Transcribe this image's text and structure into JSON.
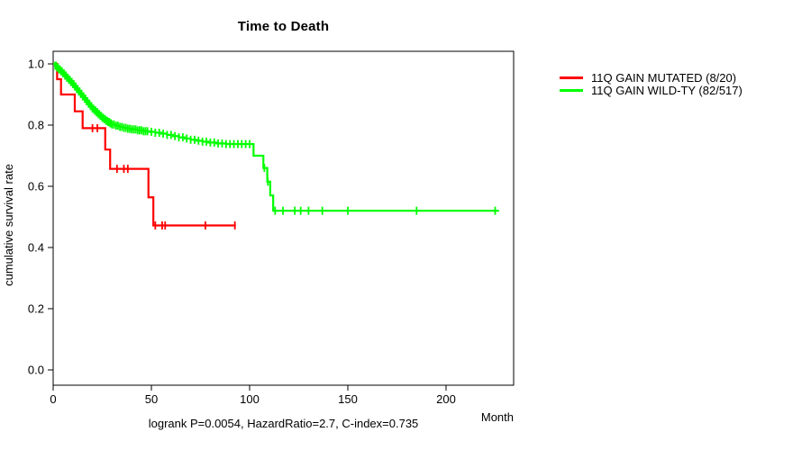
{
  "chart_data": {
    "type": "line",
    "subtype": "kaplan-meier-step",
    "title": "Time to Death",
    "xlabel": "Month",
    "ylabel": "cumulative survival rate",
    "annotation": "logrank P=0.0054, HazardRatio=2.7, C-index=0.735",
    "xlim": [
      0,
      235
    ],
    "ylim": [
      0.0,
      1.0
    ],
    "x_ticks": [
      0,
      50,
      100,
      150,
      200
    ],
    "y_ticks": [
      0.0,
      0.2,
      0.4,
      0.6,
      0.8,
      1.0
    ],
    "grid": false,
    "legend_position": "right-outside",
    "series": [
      {
        "name": "11Q GAIN MUTATED (8/20)",
        "color": "#ff0000",
        "events": "8/20",
        "steps": [
          [
            0,
            1.0
          ],
          [
            2,
            0.95
          ],
          [
            4,
            0.9
          ],
          [
            11,
            0.845
          ],
          [
            15,
            0.79
          ],
          [
            26.5,
            0.72
          ],
          [
            29,
            0.657
          ],
          [
            48.5,
            0.564
          ],
          [
            51,
            0.472
          ],
          [
            93,
            0.472
          ]
        ],
        "censor_ticks": [
          20,
          22.5,
          32.5,
          36,
          38,
          52,
          55.5,
          57,
          77.5,
          92.5
        ]
      },
      {
        "name": "11Q GAIN WILD-TY (82/517)",
        "color": "#00ff00",
        "events": "82/517",
        "steps": [
          [
            0,
            1.0
          ],
          [
            1,
            0.994
          ],
          [
            2,
            0.988
          ],
          [
            3,
            0.982
          ],
          [
            4,
            0.976
          ],
          [
            5,
            0.969
          ],
          [
            6,
            0.962
          ],
          [
            7,
            0.955
          ],
          [
            8,
            0.948
          ],
          [
            9,
            0.941
          ],
          [
            10,
            0.934
          ],
          [
            11,
            0.926
          ],
          [
            12,
            0.918
          ],
          [
            13,
            0.91
          ],
          [
            14,
            0.902
          ],
          [
            15,
            0.894
          ],
          [
            16,
            0.886
          ],
          [
            17,
            0.878
          ],
          [
            18,
            0.87
          ],
          [
            19,
            0.862
          ],
          [
            20,
            0.854
          ],
          [
            21,
            0.848
          ],
          [
            22,
            0.842
          ],
          [
            23,
            0.836
          ],
          [
            24,
            0.83
          ],
          [
            25,
            0.824
          ],
          [
            26,
            0.819
          ],
          [
            27,
            0.814
          ],
          [
            28,
            0.81
          ],
          [
            29,
            0.806
          ],
          [
            30,
            0.802
          ],
          [
            32,
            0.798
          ],
          [
            34,
            0.794
          ],
          [
            36,
            0.791
          ],
          [
            38,
            0.788
          ],
          [
            40,
            0.786
          ],
          [
            43,
            0.783
          ],
          [
            46,
            0.78
          ],
          [
            49,
            0.778
          ],
          [
            52,
            0.775
          ],
          [
            55,
            0.772
          ],
          [
            58,
            0.768
          ],
          [
            61,
            0.764
          ],
          [
            64,
            0.76
          ],
          [
            67,
            0.756
          ],
          [
            70,
            0.752
          ],
          [
            73,
            0.749
          ],
          [
            76,
            0.746
          ],
          [
            79,
            0.743
          ],
          [
            83,
            0.74
          ],
          [
            88,
            0.738
          ],
          [
            102,
            0.7
          ],
          [
            107,
            0.66
          ],
          [
            109,
            0.615
          ],
          [
            110.5,
            0.57
          ],
          [
            112,
            0.52
          ],
          [
            227,
            0.52
          ]
        ],
        "censor_ticks": [
          1,
          1.5,
          2,
          2.5,
          3,
          3.5,
          4,
          4.5,
          5,
          5.5,
          6,
          6.5,
          7,
          7.5,
          8,
          8.5,
          9,
          9.5,
          10,
          10.5,
          11,
          11.5,
          12,
          12.5,
          13,
          13.5,
          14,
          14.5,
          15,
          15.5,
          16,
          16.5,
          17,
          17.5,
          18,
          18.5,
          19,
          19.5,
          20,
          20.5,
          21,
          21.5,
          22,
          22.5,
          23,
          23.5,
          24,
          24.5,
          25,
          25.5,
          26,
          26.5,
          27,
          27.5,
          28,
          28.5,
          29,
          29.5,
          30,
          31,
          32,
          33,
          34,
          35,
          36,
          37,
          38,
          39,
          40,
          41,
          42,
          43,
          44,
          45,
          46,
          47,
          48,
          50,
          52,
          54,
          56,
          58,
          60,
          62,
          64,
          66,
          68,
          70,
          72,
          74,
          76,
          78,
          80,
          82,
          84,
          86,
          88,
          90,
          92,
          94,
          96,
          98,
          100,
          107.5,
          109.3,
          113,
          117,
          123,
          126,
          130,
          137,
          150,
          185,
          225
        ]
      }
    ]
  }
}
